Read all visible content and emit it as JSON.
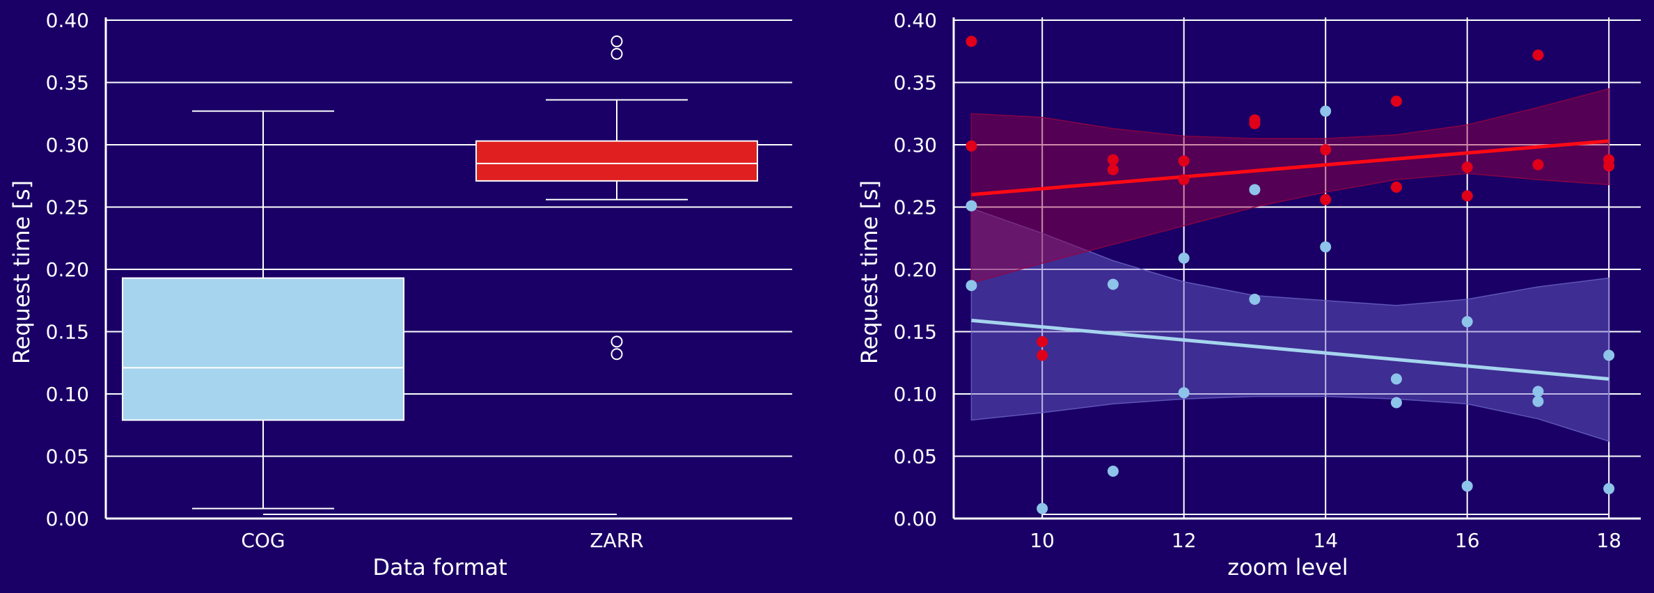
{
  "colors": {
    "background": "#1a0066",
    "grid": "#ffffff",
    "cog": "#a6d4ee",
    "zarr": "#e02020",
    "cog_points": "#8ec3ea",
    "zarr_points": "#e0001a"
  },
  "chart_data": [
    {
      "type": "box",
      "title": "",
      "xlabel": "Data format",
      "ylabel": "Request time [s]",
      "ylim": [
        0,
        0.4
      ],
      "yticks": [
        "0.00",
        "0.05",
        "0.10",
        "0.15",
        "0.20",
        "0.25",
        "0.30",
        "0.35",
        "0.40"
      ],
      "grid": "horizontal",
      "categories": [
        "COG",
        "ZARR"
      ],
      "boxes": [
        {
          "name": "COG",
          "whisker_low": 0.008,
          "q1": 0.079,
          "median": 0.121,
          "q3": 0.193,
          "whisker_high": 0.327,
          "outliers": []
        },
        {
          "name": "ZARR",
          "whisker_low": 0.256,
          "q1": 0.271,
          "median": 0.285,
          "q3": 0.303,
          "whisker_high": 0.336,
          "outliers": [
            0.132,
            0.142,
            0.373,
            0.383
          ]
        }
      ]
    },
    {
      "type": "scatter",
      "title": "",
      "xlabel": "zoom level",
      "ylabel": "Request time [s]",
      "xlim": [
        8.75,
        18.45
      ],
      "ylim": [
        0,
        0.4
      ],
      "xticks": [
        "10",
        "12",
        "14",
        "16",
        "18"
      ],
      "yticks": [
        "0.00",
        "0.05",
        "0.10",
        "0.15",
        "0.20",
        "0.25",
        "0.30",
        "0.35",
        "0.40"
      ],
      "grid": "both",
      "series": [
        {
          "points": [
            [
              9,
              0.251
            ],
            [
              9,
              0.187
            ],
            [
              10,
              0.008
            ],
            [
              11,
              0.188
            ],
            [
              11,
              0.038
            ],
            [
              12,
              0.209
            ],
            [
              12,
              0.101
            ],
            [
              13,
              0.264
            ],
            [
              13,
              0.176
            ],
            [
              14,
              0.327
            ],
            [
              14,
              0.218
            ],
            [
              15,
              0.112
            ],
            [
              15,
              0.093
            ],
            [
              16,
              0.158
            ],
            [
              16,
              0.026
            ],
            [
              17,
              0.102
            ],
            [
              17,
              0.094
            ],
            [
              18,
              0.131
            ],
            [
              18,
              0.024
            ]
          ],
          "regression": {
            "x": [
              9,
              18
            ],
            "y": [
              0.159,
              0.112
            ]
          },
          "ci_band": {
            "x": [
              9,
              10,
              11,
              12,
              13,
              14,
              15,
              16,
              17,
              18
            ],
            "low": [
              0.079,
              0.085,
              0.092,
              0.096,
              0.098,
              0.098,
              0.096,
              0.092,
              0.08,
              0.062
            ],
            "high": [
              0.249,
              0.229,
              0.207,
              0.19,
              0.179,
              0.175,
              0.171,
              0.176,
              0.186,
              0.193
            ]
          }
        },
        {
          "points": [
            [
              9,
              0.383
            ],
            [
              9,
              0.299
            ],
            [
              10,
              0.142
            ],
            [
              10,
              0.131
            ],
            [
              11,
              0.288
            ],
            [
              11,
              0.28
            ],
            [
              12,
              0.287
            ],
            [
              12,
              0.272
            ],
            [
              13,
              0.32
            ],
            [
              13,
              0.317
            ],
            [
              14,
              0.296
            ],
            [
              14,
              0.256
            ],
            [
              15,
              0.335
            ],
            [
              15,
              0.266
            ],
            [
              16,
              0.282
            ],
            [
              16,
              0.259
            ],
            [
              17,
              0.372
            ],
            [
              17,
              0.284
            ],
            [
              18,
              0.288
            ],
            [
              18,
              0.283
            ]
          ],
          "regression": {
            "x": [
              9,
              18
            ],
            "y": [
              0.26,
              0.303
            ]
          },
          "ci_band": {
            "x": [
              9,
              10,
              11,
              12,
              13,
              14,
              15,
              16,
              17,
              18
            ],
            "low": [
              0.189,
              0.205,
              0.22,
              0.235,
              0.25,
              0.262,
              0.272,
              0.277,
              0.272,
              0.268
            ],
            "high": [
              0.325,
              0.322,
              0.313,
              0.307,
              0.305,
              0.305,
              0.308,
              0.316,
              0.33,
              0.345
            ]
          }
        }
      ]
    }
  ]
}
